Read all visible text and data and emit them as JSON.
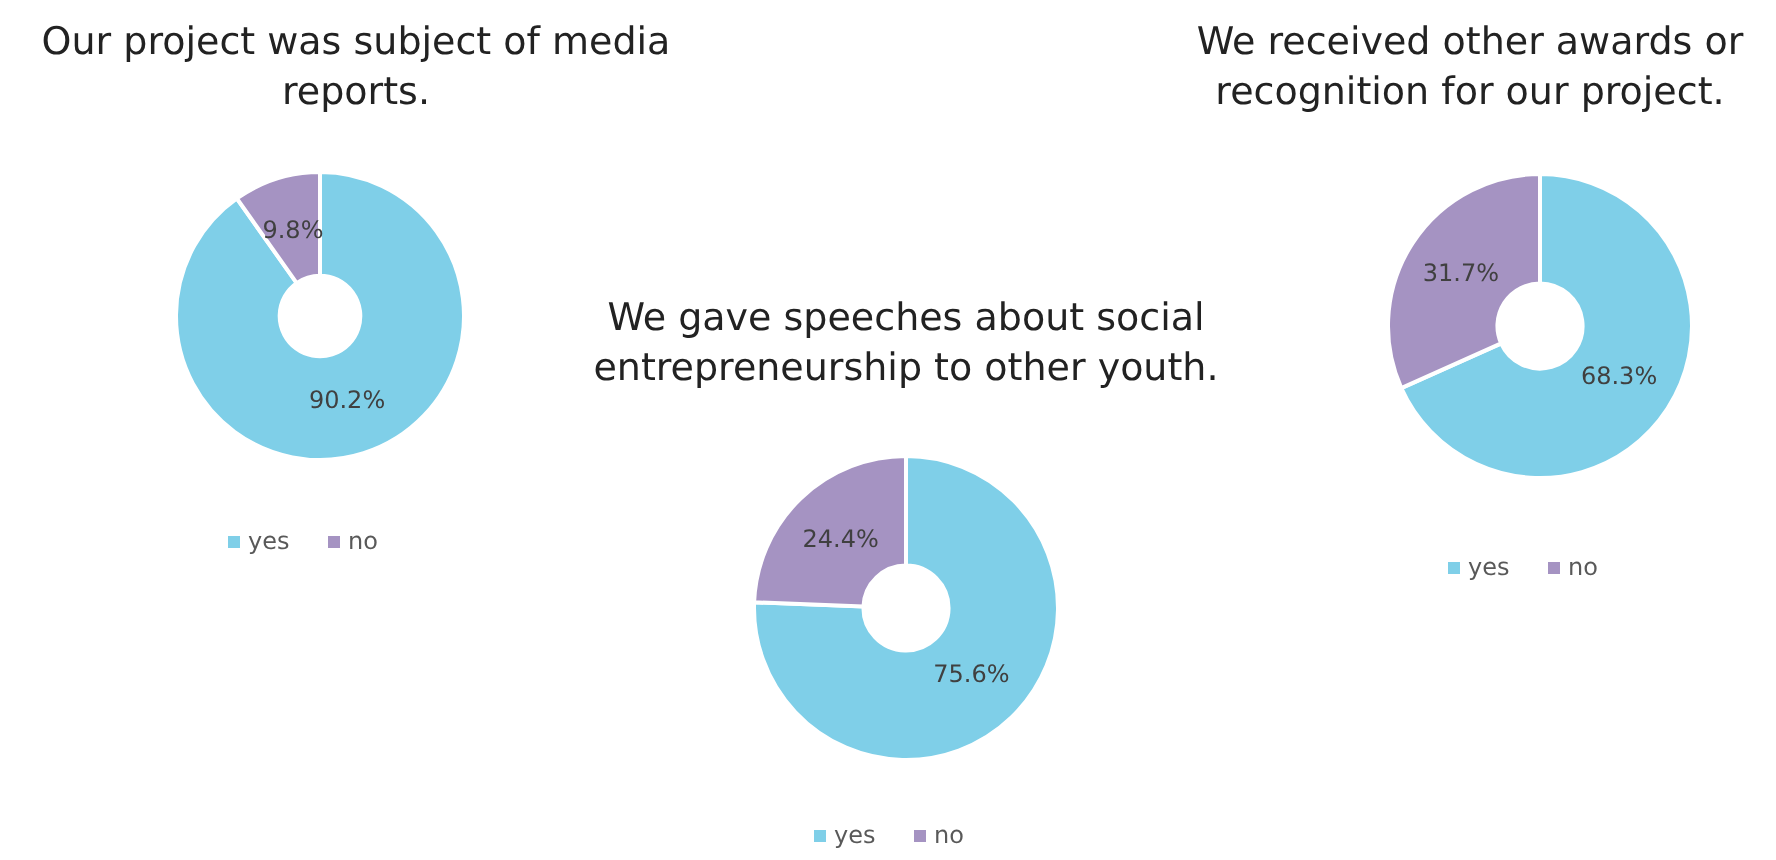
{
  "chart_data": [
    {
      "type": "donut",
      "title": "Our project was subject of media reports.",
      "categories": [
        "yes",
        "no"
      ],
      "values": [
        90.2,
        9.8
      ],
      "value_labels": [
        "90.2%",
        "9.8%"
      ],
      "colors": [
        "#7fcfe8",
        "#a593c2"
      ],
      "legend": "bottom"
    },
    {
      "type": "donut",
      "title": "We gave speeches about social entrepreneurship to other youth.",
      "categories": [
        "yes",
        "no"
      ],
      "values": [
        75.6,
        24.4
      ],
      "value_labels": [
        "75.6%",
        "24.4%"
      ],
      "colors": [
        "#7fcfe8",
        "#a593c2"
      ],
      "legend": "bottom"
    },
    {
      "type": "donut",
      "title": "We received other awards or recognition for our project.",
      "categories": [
        "yes",
        "no"
      ],
      "values": [
        68.3,
        31.7
      ],
      "value_labels": [
        "68.3%",
        "31.7%"
      ],
      "colors": [
        "#7fcfe8",
        "#a593c2"
      ],
      "legend": "bottom"
    }
  ]
}
